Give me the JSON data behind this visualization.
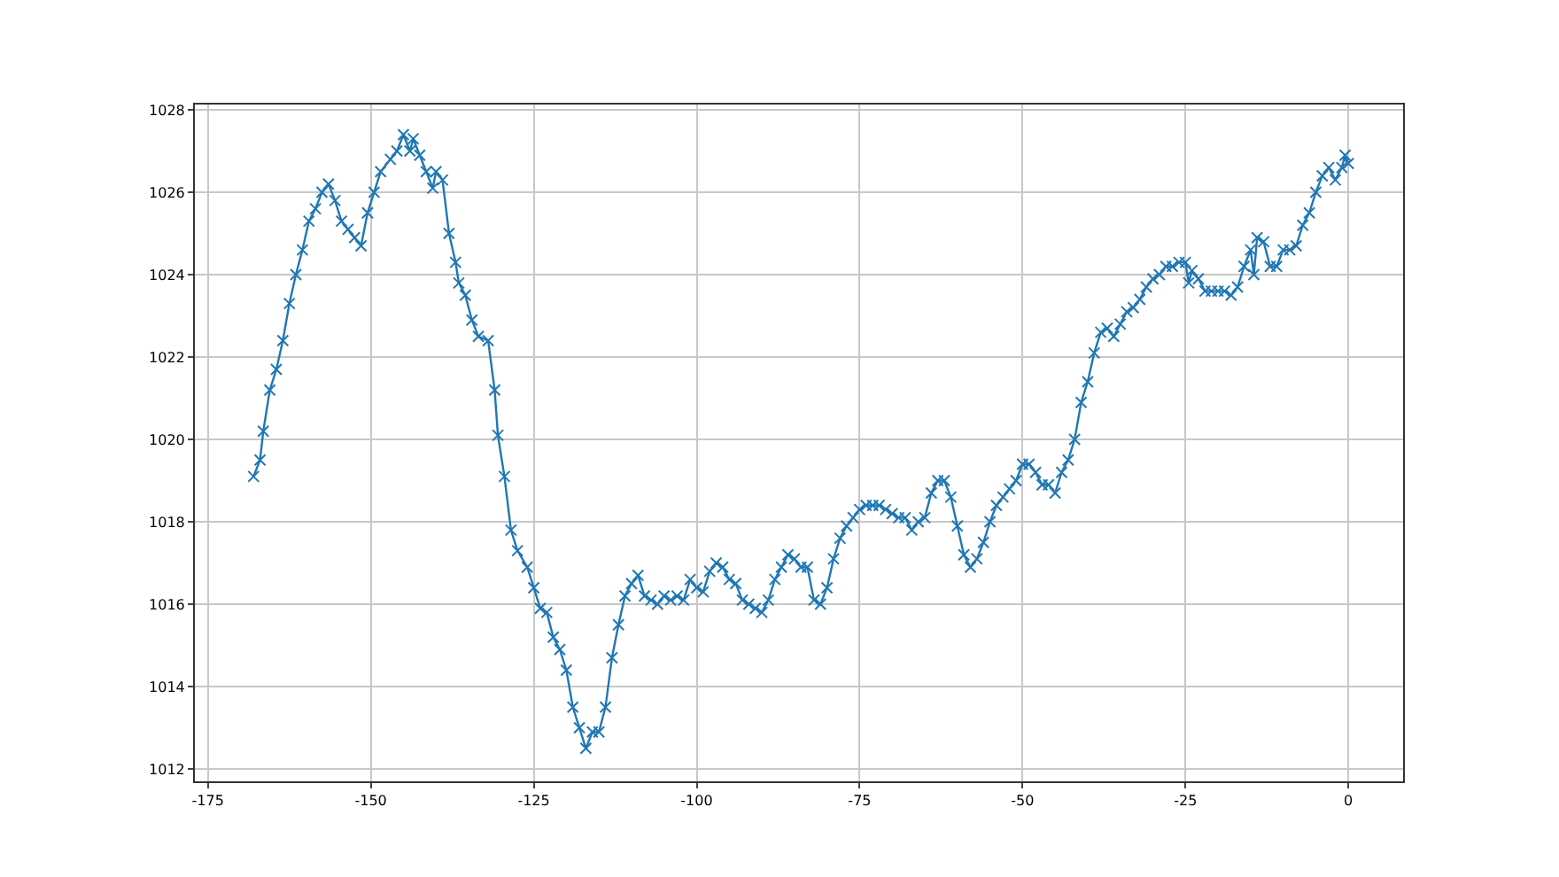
{
  "chart_data": {
    "type": "line",
    "marker": "cross",
    "line_style": "solid",
    "grid": true,
    "xlim": [
      -177,
      8.4
    ],
    "xticks": [
      -175,
      -150,
      -125,
      -100,
      -75,
      -50,
      -25,
      0
    ],
    "ylim": [
      1011.7,
      1028.13
    ],
    "yticks": [
      1012,
      1014,
      1016,
      1018,
      1020,
      1022,
      1024,
      1026,
      1028
    ],
    "series": [
      {
        "color": "#1f77b4",
        "x": [
          -168,
          -167,
          -166.5,
          -165.5,
          -164.5,
          -163.5,
          -162.5,
          -161.5,
          -160.5,
          -159.5,
          -158.5,
          -157.5,
          -156.5,
          -155.5,
          -154.5,
          -153.5,
          -152.5,
          -151.5,
          -150.5,
          -149.5,
          -148.5,
          -147,
          -146,
          -145,
          -144,
          -143.5,
          -142.5,
          -141.5,
          -140.5,
          -140,
          -139,
          -138,
          -137,
          -136.5,
          -135.5,
          -134.5,
          -133.5,
          -132,
          -131,
          -130.5,
          -129.5,
          -128.5,
          -127.5,
          -126,
          -125,
          -124,
          -123,
          -122,
          -121,
          -120,
          -119,
          -118,
          -117,
          -116,
          -115,
          -114,
          -113,
          -112,
          -111,
          -110,
          -109,
          -108,
          -107,
          -106,
          -105,
          -104,
          -103,
          -102,
          -101,
          -100,
          -99,
          -98,
          -97,
          -96,
          -95,
          -94,
          -93,
          -92,
          -91,
          -90,
          -89,
          -88,
          -87,
          -86,
          -85,
          -84,
          -83,
          -82,
          -81,
          -80,
          -79,
          -78,
          -77,
          -76,
          -75,
          -74,
          -73,
          -72,
          -71,
          -70,
          -69,
          -68,
          -67,
          -66,
          -65,
          -64,
          -63,
          -62,
          -61,
          -60,
          -59,
          -58,
          -57,
          -56,
          -55,
          -54,
          -53,
          -52,
          -51,
          -50,
          -49,
          -48,
          -47,
          -46,
          -45,
          -44,
          -43,
          -42,
          -41,
          -40,
          -39,
          -38,
          -37,
          -36,
          -35,
          -34,
          -33,
          -32,
          -31,
          -30,
          -29,
          -28,
          -27,
          -26,
          -25,
          -24.5,
          -24,
          -23,
          -22,
          -21,
          -20,
          -19,
          -18,
          -17,
          -16,
          -15,
          -14.5,
          -14,
          -13,
          -12,
          -11,
          -10,
          -9,
          -8,
          -7,
          -6,
          -5,
          -4,
          -3,
          -2,
          -1,
          -0.5,
          0
        ],
        "values": [
          1019.1,
          1019.5,
          1020.2,
          1021.2,
          1021.7,
          1022.4,
          1023.3,
          1024.0,
          1024.6,
          1025.3,
          1025.6,
          1026.0,
          1026.2,
          1025.8,
          1025.3,
          1025.1,
          1024.9,
          1024.7,
          1025.5,
          1026.0,
          1026.5,
          1026.8,
          1027.0,
          1027.4,
          1027.0,
          1027.3,
          1026.9,
          1026.5,
          1026.1,
          1026.5,
          1026.3,
          1025.0,
          1024.3,
          1023.8,
          1023.5,
          1022.9,
          1022.5,
          1022.4,
          1021.2,
          1020.1,
          1019.1,
          1017.8,
          1017.3,
          1016.9,
          1016.4,
          1015.9,
          1015.8,
          1015.2,
          1014.9,
          1014.4,
          1013.5,
          1013.0,
          1012.5,
          1012.9,
          1012.9,
          1013.5,
          1014.7,
          1015.5,
          1016.2,
          1016.5,
          1016.7,
          1016.2,
          1016.1,
          1016.0,
          1016.2,
          1016.1,
          1016.2,
          1016.1,
          1016.6,
          1016.4,
          1016.3,
          1016.8,
          1017.0,
          1016.9,
          1016.6,
          1016.5,
          1016.1,
          1016.0,
          1015.9,
          1015.8,
          1016.1,
          1016.6,
          1016.9,
          1017.2,
          1017.1,
          1016.9,
          1016.9,
          1016.1,
          1016.0,
          1016.4,
          1017.1,
          1017.6,
          1017.9,
          1018.1,
          1018.3,
          1018.4,
          1018.4,
          1018.4,
          1018.3,
          1018.2,
          1018.1,
          1018.1,
          1017.8,
          1018.0,
          1018.1,
          1018.7,
          1019.0,
          1019.0,
          1018.6,
          1017.9,
          1017.2,
          1016.9,
          1017.1,
          1017.5,
          1018.0,
          1018.4,
          1018.6,
          1018.8,
          1019.0,
          1019.4,
          1019.4,
          1019.2,
          1018.9,
          1018.9,
          1018.7,
          1019.2,
          1019.5,
          1020.0,
          1020.9,
          1021.4,
          1022.1,
          1022.6,
          1022.7,
          1022.5,
          1022.8,
          1023.1,
          1023.2,
          1023.4,
          1023.7,
          1023.9,
          1024.0,
          1024.2,
          1024.2,
          1024.3,
          1024.3,
          1023.8,
          1024.1,
          1023.9,
          1023.6,
          1023.6,
          1023.6,
          1023.6,
          1023.5,
          1023.7,
          1024.2,
          1024.6,
          1024.0,
          1024.9,
          1024.8,
          1024.2,
          1024.2,
          1024.6,
          1024.6,
          1024.7,
          1025.2,
          1025.5,
          1026.0,
          1026.4,
          1026.6,
          1026.3,
          1026.6,
          1026.9,
          1026.7
        ]
      }
    ]
  }
}
